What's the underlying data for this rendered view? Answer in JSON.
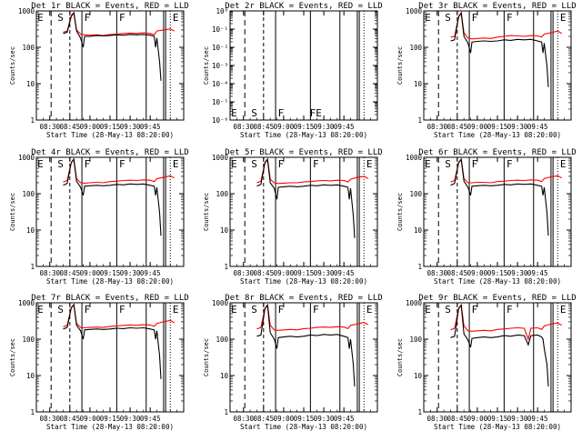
{
  "chart_data": [
    {
      "type": "line",
      "title": "Det 1r BLACK = Events, RED = LLD",
      "xlabel": "Start Time (28-May-13 08:20:00)",
      "ylabel": "Counts/sec",
      "yscale": "log",
      "ylim": [
        1,
        1000
      ],
      "x_ticks": [
        "08:30",
        "08:45",
        "09:00",
        "09:15",
        "09:30",
        "09:45"
      ],
      "y_ticks": [
        "1",
        "10",
        "100",
        "1000"
      ],
      "markers": [
        "E",
        "S",
        "F",
        "F",
        "E"
      ],
      "series": [
        {
          "color": "#ff0000",
          "x": [
            20,
            23,
            26,
            28,
            30,
            33,
            36,
            40,
            45,
            50,
            55,
            60,
            65,
            70,
            75,
            80,
            85,
            88,
            90,
            95,
            100,
            103
          ],
          "y": [
            260,
            280,
            750,
            900,
            300,
            230,
            220,
            215,
            220,
            210,
            225,
            230,
            240,
            245,
            240,
            250,
            240,
            220,
            280,
            300,
            320,
            280
          ]
        },
        {
          "color": "#000000",
          "x": [
            20,
            23,
            26,
            28,
            30,
            33,
            35,
            36,
            40,
            45,
            50,
            55,
            60,
            65,
            70,
            75,
            80,
            85,
            88,
            89,
            90,
            92,
            93
          ],
          "y": [
            240,
            260,
            700,
            880,
            280,
            180,
            100,
            200,
            200,
            210,
            205,
            210,
            220,
            215,
            225,
            220,
            225,
            215,
            200,
            100,
            180,
            40,
            12
          ]
        }
      ]
    },
    {
      "type": "line",
      "title": "Det 2r BLACK = Events, RED = LLD",
      "xlabel": "Start Time (28-May-13 08:20:00)",
      "ylabel": "Counts/sec",
      "yscale": "log",
      "ylim": [
        1e-06,
        1
      ],
      "x_ticks": [
        "08:30",
        "08:45",
        "09:00",
        "09:15",
        "09:30",
        "09:45"
      ],
      "y_ticks": [
        "10⁻⁶",
        "10⁻⁵",
        "10⁻⁴",
        "10⁻³",
        "10⁻²",
        "10⁻¹",
        "10⁰"
      ],
      "markers": [
        "E",
        "S",
        "F",
        "FE"
      ],
      "series": []
    },
    {
      "type": "line",
      "title": "Det 3r BLACK = Events, RED = LLD",
      "xlabel": "Start Time (28-May-13 08:20:00)",
      "ylabel": "Counts/sec",
      "yscale": "log",
      "ylim": [
        1,
        1000
      ],
      "x_ticks": [
        "08:30",
        "08:45",
        "09:00",
        "09:15",
        "09:30",
        "09:45"
      ],
      "y_ticks": [
        "1",
        "10",
        "100",
        "1000"
      ],
      "markers": [
        "E",
        "S",
        "F",
        "F",
        "E"
      ],
      "series": [
        {
          "color": "#ff0000",
          "x": [
            20,
            23,
            26,
            28,
            30,
            33,
            36,
            40,
            45,
            50,
            55,
            60,
            65,
            70,
            75,
            80,
            85,
            88,
            90,
            95,
            100,
            103
          ],
          "y": [
            190,
            200,
            700,
            900,
            250,
            180,
            170,
            175,
            180,
            175,
            190,
            200,
            210,
            205,
            200,
            210,
            205,
            190,
            230,
            250,
            280,
            240
          ]
        },
        {
          "color": "#000000",
          "x": [
            20,
            23,
            26,
            28,
            30,
            33,
            35,
            36,
            40,
            45,
            50,
            55,
            60,
            65,
            70,
            75,
            80,
            85,
            88,
            89,
            90,
            92,
            93
          ],
          "y": [
            150,
            160,
            680,
            860,
            200,
            130,
            70,
            140,
            145,
            150,
            145,
            150,
            160,
            155,
            165,
            160,
            165,
            150,
            140,
            70,
            130,
            30,
            8
          ]
        }
      ]
    },
    {
      "type": "line",
      "title": "Det 4r BLACK = Events, RED = LLD",
      "xlabel": "Start Time (28-May-13 08:20:00)",
      "ylabel": "Counts/sec",
      "yscale": "log",
      "ylim": [
        1,
        1000
      ],
      "x_ticks": [
        "08:30",
        "08:45",
        "09:00",
        "09:15",
        "09:30",
        "09:45"
      ],
      "y_ticks": [
        "1",
        "10",
        "100",
        "1000"
      ],
      "markers": [
        "E",
        "S",
        "F",
        "F",
        "E"
      ],
      "series": [
        {
          "color": "#ff0000",
          "x": [
            20,
            23,
            26,
            28,
            30,
            33,
            36,
            40,
            45,
            50,
            55,
            60,
            65,
            70,
            75,
            80,
            85,
            88,
            90,
            95,
            100,
            103
          ],
          "y": [
            210,
            230,
            720,
            900,
            260,
            200,
            195,
            200,
            205,
            200,
            215,
            220,
            230,
            235,
            230,
            240,
            235,
            215,
            260,
            280,
            310,
            270
          ]
        },
        {
          "color": "#000000",
          "x": [
            20,
            23,
            26,
            28,
            30,
            33,
            35,
            36,
            40,
            45,
            50,
            55,
            60,
            65,
            70,
            75,
            80,
            85,
            88,
            89,
            90,
            92,
            93
          ],
          "y": [
            170,
            190,
            700,
            870,
            220,
            150,
            90,
            160,
            165,
            170,
            165,
            170,
            180,
            175,
            185,
            180,
            185,
            170,
            160,
            90,
            150,
            30,
            7
          ]
        }
      ]
    },
    {
      "type": "line",
      "title": "Det 5r BLACK = Events, RED = LLD",
      "xlabel": "Start Time (28-May-13 08:20:00)",
      "ylabel": "Counts/sec",
      "yscale": "log",
      "ylim": [
        1,
        1000
      ],
      "x_ticks": [
        "08:30",
        "08:45",
        "09:00",
        "09:15",
        "09:30",
        "09:45"
      ],
      "y_ticks": [
        "1",
        "10",
        "100",
        "1000"
      ],
      "markers": [
        "E",
        "S",
        "F",
        "F",
        "E"
      ],
      "series": [
        {
          "color": "#ff0000",
          "x": [
            20,
            23,
            26,
            28,
            30,
            33,
            36,
            40,
            45,
            50,
            55,
            60,
            65,
            70,
            75,
            80,
            85,
            88,
            90,
            95,
            100,
            103
          ],
          "y": [
            200,
            220,
            720,
            900,
            250,
            200,
            190,
            195,
            200,
            200,
            210,
            215,
            225,
            230,
            225,
            235,
            230,
            210,
            250,
            280,
            300,
            260
          ]
        },
        {
          "color": "#000000",
          "x": [
            20,
            23,
            26,
            28,
            30,
            33,
            35,
            36,
            40,
            45,
            50,
            55,
            60,
            65,
            70,
            75,
            80,
            85,
            88,
            89,
            90,
            92,
            93
          ],
          "y": [
            160,
            180,
            700,
            860,
            200,
            140,
            70,
            150,
            155,
            160,
            155,
            160,
            170,
            165,
            175,
            170,
            175,
            160,
            150,
            70,
            140,
            25,
            6
          ]
        }
      ]
    },
    {
      "type": "line",
      "title": "Det 6r BLACK = Events, RED = LLD",
      "xlabel": "Start Time (28-May-13 08:20:00)",
      "ylabel": "Counts/sec",
      "yscale": "log",
      "ylim": [
        1,
        1000
      ],
      "x_ticks": [
        "08:30",
        "08:45",
        "09:00",
        "09:15",
        "09:30",
        "09:45"
      ],
      "y_ticks": [
        "1",
        "10",
        "100",
        "1000"
      ],
      "markers": [
        "E",
        "S",
        "F",
        "F",
        "E"
      ],
      "series": [
        {
          "color": "#ff0000",
          "x": [
            20,
            23,
            26,
            28,
            30,
            33,
            36,
            40,
            45,
            50,
            55,
            60,
            65,
            70,
            75,
            80,
            85,
            88,
            90,
            95,
            100,
            103
          ],
          "y": [
            210,
            230,
            720,
            900,
            260,
            200,
            200,
            205,
            205,
            200,
            215,
            220,
            230,
            235,
            230,
            240,
            235,
            215,
            260,
            290,
            310,
            270
          ]
        },
        {
          "color": "#000000",
          "x": [
            20,
            23,
            26,
            28,
            30,
            33,
            35,
            36,
            40,
            45,
            50,
            55,
            60,
            65,
            70,
            75,
            80,
            85,
            88,
            89,
            90,
            92,
            93
          ],
          "y": [
            170,
            190,
            700,
            870,
            220,
            150,
            90,
            160,
            165,
            170,
            165,
            170,
            180,
            175,
            185,
            180,
            185,
            170,
            160,
            90,
            150,
            30,
            7
          ]
        }
      ]
    },
    {
      "type": "line",
      "title": "Det 7r BLACK = Events, RED = LLD",
      "xlabel": "Start Time (28-May-13 08:20:00)",
      "ylabel": "Counts/sec",
      "yscale": "log",
      "ylim": [
        1,
        1000
      ],
      "x_ticks": [
        "08:30",
        "08:45",
        "09:00",
        "09:15",
        "09:30",
        "09:45"
      ],
      "y_ticks": [
        "1",
        "10",
        "100",
        "1000"
      ],
      "markers": [
        "E",
        "S",
        "F",
        "F",
        "E"
      ],
      "series": [
        {
          "color": "#ff0000",
          "x": [
            20,
            23,
            26,
            28,
            30,
            33,
            36,
            40,
            45,
            50,
            55,
            60,
            65,
            70,
            75,
            80,
            85,
            88,
            90,
            95,
            100,
            103
          ],
          "y": [
            220,
            240,
            730,
            900,
            270,
            210,
            205,
            210,
            215,
            210,
            225,
            230,
            240,
            245,
            240,
            250,
            245,
            225,
            270,
            300,
            330,
            280
          ]
        },
        {
          "color": "#000000",
          "x": [
            20,
            23,
            26,
            28,
            30,
            33,
            35,
            36,
            40,
            45,
            50,
            55,
            60,
            65,
            70,
            75,
            80,
            85,
            88,
            89,
            90,
            92,
            93
          ],
          "y": [
            190,
            210,
            710,
            880,
            240,
            170,
            100,
            180,
            185,
            190,
            185,
            190,
            200,
            195,
            205,
            200,
            205,
            190,
            180,
            100,
            170,
            35,
            8
          ]
        }
      ]
    },
    {
      "type": "line",
      "title": "Det 8r BLACK = Events, RED = LLD",
      "xlabel": "Start Time (28-May-13 08:20:00)",
      "ylabel": "Counts/sec",
      "yscale": "log",
      "ylim": [
        1,
        1000
      ],
      "x_ticks": [
        "08:30",
        "08:45",
        "09:00",
        "09:15",
        "09:30",
        "09:45"
      ],
      "y_ticks": [
        "1",
        "10",
        "100",
        "1000"
      ],
      "markers": [
        "E",
        "S",
        "F",
        "F",
        "E"
      ],
      "series": [
        {
          "color": "#ff0000",
          "x": [
            20,
            23,
            26,
            28,
            30,
            33,
            36,
            40,
            45,
            50,
            55,
            60,
            65,
            70,
            75,
            80,
            85,
            88,
            90,
            95,
            100,
            103
          ],
          "y": [
            190,
            210,
            700,
            880,
            240,
            180,
            175,
            180,
            185,
            180,
            195,
            200,
            210,
            215,
            210,
            220,
            215,
            195,
            240,
            260,
            290,
            250
          ]
        },
        {
          "color": "#000000",
          "x": [
            20,
            23,
            26,
            28,
            30,
            33,
            35,
            36,
            40,
            45,
            50,
            55,
            60,
            65,
            70,
            75,
            80,
            85,
            88,
            89,
            90,
            92,
            93
          ],
          "y": [
            120,
            130,
            680,
            850,
            150,
            100,
            55,
            110,
            115,
            120,
            115,
            120,
            130,
            125,
            135,
            130,
            135,
            120,
            110,
            55,
            100,
            20,
            5
          ]
        }
      ]
    },
    {
      "type": "line",
      "title": "Det 9r BLACK = Events, RED = LLD",
      "xlabel": "Start Time (28-May-13 08:20:00)",
      "ylabel": "Counts/sec",
      "yscale": "log",
      "ylim": [
        1,
        1000
      ],
      "x_ticks": [
        "08:30",
        "08:45",
        "09:00",
        "09:15",
        "09:30",
        "09:45"
      ],
      "y_ticks": [
        "1",
        "10",
        "100",
        "1000"
      ],
      "markers": [
        "E",
        "S",
        "F",
        "F",
        "E"
      ],
      "series": [
        {
          "color": "#ff0000",
          "x": [
            20,
            23,
            26,
            28,
            30,
            33,
            36,
            40,
            45,
            50,
            55,
            60,
            65,
            70,
            75,
            78,
            80,
            85,
            88,
            90,
            95,
            100,
            103
          ],
          "y": [
            180,
            200,
            700,
            880,
            230,
            170,
            165,
            170,
            175,
            170,
            185,
            190,
            200,
            205,
            200,
            100,
            200,
            205,
            185,
            230,
            260,
            280,
            240
          ]
        },
        {
          "color": "#000000",
          "x": [
            20,
            23,
            26,
            28,
            30,
            33,
            35,
            36,
            40,
            45,
            50,
            55,
            60,
            65,
            70,
            75,
            78,
            80,
            85,
            88,
            89,
            90,
            92,
            93
          ],
          "y": [
            110,
            120,
            680,
            850,
            140,
            95,
            60,
            105,
            110,
            115,
            110,
            115,
            125,
            120,
            130,
            125,
            70,
            125,
            130,
            115,
            100,
            55,
            20,
            5
          ]
        }
      ]
    }
  ]
}
